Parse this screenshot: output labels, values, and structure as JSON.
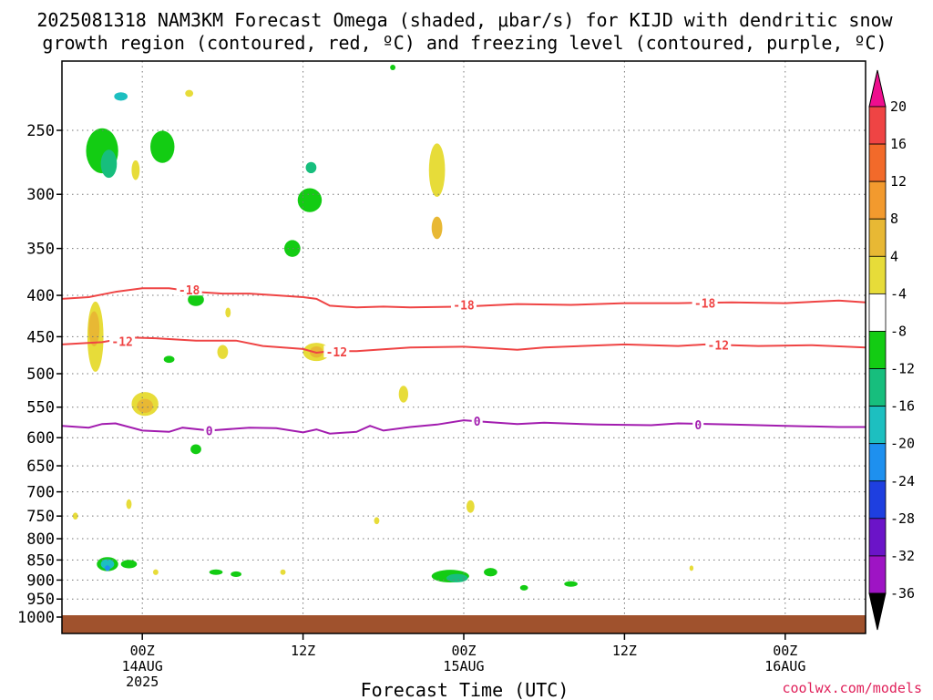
{
  "header": {
    "title_line1": "2025081318 NAM3KM Forecast Omega (shaded, μbar/s) for KIJD with dendritic snow",
    "title_line2": "growth region (contoured, red, ºC) and freezing level (contoured, purple, ºC)"
  },
  "footer": {
    "xlabel": "Forecast Time (UTC)",
    "credit": "coolwx.com/models"
  },
  "colors": {
    "dgz": "#ef4444",
    "freezing": "#a21caf",
    "ground": "#a0522d",
    "grid": "#777777"
  },
  "chart_data": {
    "type": "heatmap",
    "title": "2025081318 NAM3KM Forecast Omega (shaded, μbar/s) for KIJD with dendritic snow growth region (contoured, red, ºC) and freezing level (contoured, purple, ºC)",
    "xlabel": "Forecast Time (UTC)",
    "ylabel": "",
    "xlim": [
      -6,
      54
    ],
    "ylim": [
      1000,
      200
    ],
    "y_scale": "log",
    "grid": true,
    "y_ticks": [
      250,
      300,
      350,
      400,
      450,
      500,
      550,
      600,
      650,
      700,
      750,
      800,
      850,
      900,
      950,
      1000
    ],
    "x_ticks": [
      {
        "x": 0,
        "line1": "00Z",
        "line2": "14AUG",
        "line3": "2025"
      },
      {
        "x": 12,
        "line1": "12Z",
        "line2": "",
        "line3": ""
      },
      {
        "x": 24,
        "line1": "00Z",
        "line2": "15AUG",
        "line3": ""
      },
      {
        "x": 36,
        "line1": "12Z",
        "line2": "",
        "line3": ""
      },
      {
        "x": 48,
        "line1": "00Z",
        "line2": "16AUG",
        "line3": ""
      }
    ],
    "colorbar": {
      "labels": [
        "20",
        "16",
        "12",
        "8",
        "4",
        "-4",
        "-8",
        "-12",
        "-16",
        "-20",
        "-24",
        "-28",
        "-32",
        "-36"
      ],
      "colors": [
        "#ee0e8e",
        "#ef4444",
        "#f26a2a",
        "#f29a2e",
        "#e8b834",
        "#e7dc39",
        "#ffffff",
        "#13cc13",
        "#17be7d",
        "#1dbfc0",
        "#1e90ef",
        "#1e3fe0",
        "#6b14c8",
        "#9e14c4",
        "#a0a0a0",
        "#000000"
      ]
    },
    "contours": [
      {
        "level": -18,
        "label": "-18",
        "color": "#ef4444",
        "points": [
          [
            -6,
            404
          ],
          [
            -4,
            402
          ],
          [
            -2,
            396
          ],
          [
            0,
            392
          ],
          [
            2,
            392
          ],
          [
            4,
            396
          ],
          [
            6,
            398
          ],
          [
            8,
            398
          ],
          [
            10,
            400
          ],
          [
            12,
            402
          ],
          [
            13,
            404
          ],
          [
            14,
            412
          ],
          [
            16,
            414
          ],
          [
            18,
            413
          ],
          [
            20,
            414
          ],
          [
            24,
            413
          ],
          [
            28,
            410
          ],
          [
            32,
            411
          ],
          [
            36,
            409
          ],
          [
            40,
            409
          ],
          [
            44,
            408
          ],
          [
            48,
            409
          ],
          [
            52,
            406
          ],
          [
            54,
            408
          ]
        ],
        "label_points": [
          [
            3.5,
            394
          ],
          [
            24,
            411
          ],
          [
            42,
            409
          ]
        ]
      },
      {
        "level": -12,
        "label": "-12",
        "color": "#ef4444",
        "points": [
          [
            -6,
            460
          ],
          [
            -3,
            457
          ],
          [
            -1,
            451
          ],
          [
            1,
            452
          ],
          [
            4,
            455
          ],
          [
            7,
            455
          ],
          [
            9,
            462
          ],
          [
            12,
            466
          ],
          [
            13,
            471
          ],
          [
            14,
            469
          ],
          [
            16,
            469
          ],
          [
            20,
            464
          ],
          [
            24,
            463
          ],
          [
            26,
            465
          ],
          [
            28,
            467
          ],
          [
            30,
            464
          ],
          [
            36,
            460
          ],
          [
            40,
            462
          ],
          [
            42,
            460
          ],
          [
            46,
            462
          ],
          [
            50,
            461
          ],
          [
            54,
            464
          ]
        ],
        "label_points": [
          [
            -1.5,
            456
          ],
          [
            14.5,
            470
          ],
          [
            43,
            461
          ]
        ]
      },
      {
        "level": 0,
        "label": "0",
        "color": "#a21caf",
        "points": [
          [
            -6,
            580
          ],
          [
            -4,
            583
          ],
          [
            -3,
            577
          ],
          [
            -2,
            576
          ],
          [
            0,
            588
          ],
          [
            2,
            590
          ],
          [
            3,
            583
          ],
          [
            5,
            588
          ],
          [
            8,
            583
          ],
          [
            10,
            584
          ],
          [
            12,
            591
          ],
          [
            13,
            586
          ],
          [
            14,
            593
          ],
          [
            16,
            590
          ],
          [
            17,
            580
          ],
          [
            18,
            588
          ],
          [
            20,
            582
          ],
          [
            22,
            578
          ],
          [
            24,
            571
          ],
          [
            26,
            574
          ],
          [
            28,
            577
          ],
          [
            30,
            575
          ],
          [
            34,
            578
          ],
          [
            38,
            579
          ],
          [
            40,
            576
          ],
          [
            44,
            578
          ],
          [
            48,
            580
          ],
          [
            52,
            582
          ],
          [
            54,
            582
          ]
        ],
        "label_points": [
          [
            5,
            588
          ],
          [
            25,
            572
          ],
          [
            41.5,
            578
          ]
        ]
      }
    ],
    "omega_features": [
      {
        "cx": -3,
        "cy": 265,
        "rx": 1.2,
        "ry": 3.2,
        "color": "#13cc13"
      },
      {
        "cx": -2.5,
        "cy": 275,
        "rx": 0.6,
        "ry": 2.0,
        "color": "#17be7d"
      },
      {
        "cx": -1.6,
        "cy": 227,
        "rx": 0.5,
        "ry": 0.6,
        "color": "#1dbfc0"
      },
      {
        "cx": 1.5,
        "cy": 262,
        "rx": 0.9,
        "ry": 2.3,
        "color": "#13cc13"
      },
      {
        "cx": 12.5,
        "cy": 305,
        "rx": 0.9,
        "ry": 1.7,
        "color": "#13cc13"
      },
      {
        "cx": 12.6,
        "cy": 278,
        "rx": 0.4,
        "ry": 0.8,
        "color": "#17be7d"
      },
      {
        "cx": 11.2,
        "cy": 350,
        "rx": 0.6,
        "ry": 1.2,
        "color": "#13cc13"
      },
      {
        "cx": 4,
        "cy": 405,
        "rx": 0.6,
        "ry": 0.9,
        "color": "#13cc13"
      },
      {
        "cx": 2,
        "cy": 480,
        "rx": 0.4,
        "ry": 0.5,
        "color": "#13cc13"
      },
      {
        "cx": 4,
        "cy": 620,
        "rx": 0.4,
        "ry": 0.7,
        "color": "#13cc13"
      },
      {
        "cx": -2.6,
        "cy": 860,
        "rx": 0.8,
        "ry": 1.0,
        "color": "#13cc13"
      },
      {
        "cx": -2.6,
        "cy": 860,
        "rx": 0.5,
        "ry": 0.7,
        "color": "#1dbfc0"
      },
      {
        "cx": -2.6,
        "cy": 870,
        "rx": 0.2,
        "ry": 0.4,
        "color": "#1e90ef"
      },
      {
        "cx": -1,
        "cy": 860,
        "rx": 0.6,
        "ry": 0.6,
        "color": "#13cc13"
      },
      {
        "cx": 7,
        "cy": 885,
        "rx": 0.4,
        "ry": 0.4,
        "color": "#13cc13"
      },
      {
        "cx": 23,
        "cy": 890,
        "rx": 1.4,
        "ry": 0.9,
        "color": "#13cc13"
      },
      {
        "cx": 23.5,
        "cy": 895,
        "rx": 0.8,
        "ry": 0.6,
        "color": "#17be7d"
      },
      {
        "cx": 26,
        "cy": 880,
        "rx": 0.5,
        "ry": 0.6,
        "color": "#13cc13"
      },
      {
        "cx": 32,
        "cy": 910,
        "rx": 0.5,
        "ry": 0.4,
        "color": "#13cc13"
      },
      {
        "cx": 28.5,
        "cy": 920,
        "rx": 0.3,
        "ry": 0.3,
        "color": "#13cc13"
      },
      {
        "cx": 18.7,
        "cy": 209,
        "rx": 0.2,
        "ry": 0.2,
        "color": "#13cc13"
      },
      {
        "cx": 5.5,
        "cy": 880,
        "rx": 0.5,
        "ry": 0.1,
        "color": "#13cc13"
      },
      {
        "cx": 22,
        "cy": 280,
        "rx": 0.6,
        "ry": 3.8,
        "color": "#e7dc39"
      },
      {
        "cx": 22,
        "cy": 330,
        "rx": 0.4,
        "ry": 1.6,
        "color": "#e8b834"
      },
      {
        "cx": -3.5,
        "cy": 450,
        "rx": 0.6,
        "ry": 5.0,
        "color": "#e7dc39"
      },
      {
        "cx": -3.6,
        "cy": 440,
        "rx": 0.4,
        "ry": 2.5,
        "color": "#e8b834"
      },
      {
        "cx": 0.2,
        "cy": 545,
        "rx": 1.0,
        "ry": 1.7,
        "color": "#e7dc39"
      },
      {
        "cx": 0.2,
        "cy": 548,
        "rx": 0.6,
        "ry": 1.0,
        "color": "#e8b834"
      },
      {
        "cx": 13,
        "cy": 470,
        "rx": 1.0,
        "ry": 1.3,
        "color": "#e7dc39"
      },
      {
        "cx": 13,
        "cy": 470,
        "rx": 0.5,
        "ry": 0.8,
        "color": "#e8b834"
      },
      {
        "cx": -0.5,
        "cy": 280,
        "rx": 0.3,
        "ry": 1.4,
        "color": "#e7dc39"
      },
      {
        "cx": 3.5,
        "cy": 225,
        "rx": 0.3,
        "ry": 0.5,
        "color": "#e7dc39"
      },
      {
        "cx": 6,
        "cy": 470,
        "rx": 0.4,
        "ry": 1.0,
        "color": "#e7dc39"
      },
      {
        "cx": 6.4,
        "cy": 420,
        "rx": 0.2,
        "ry": 0.7,
        "color": "#e7dc39"
      },
      {
        "cx": 19.5,
        "cy": 530,
        "rx": 0.35,
        "ry": 1.2,
        "color": "#e7dc39"
      },
      {
        "cx": 17.5,
        "cy": 760,
        "rx": 0.2,
        "ry": 0.5,
        "color": "#e7dc39"
      },
      {
        "cx": 24.5,
        "cy": 730,
        "rx": 0.3,
        "ry": 0.9,
        "color": "#e7dc39"
      },
      {
        "cx": -5,
        "cy": 750,
        "rx": 0.2,
        "ry": 0.5,
        "color": "#e7dc39"
      },
      {
        "cx": -1,
        "cy": 725,
        "rx": 0.2,
        "ry": 0.7,
        "color": "#e7dc39"
      },
      {
        "cx": 1,
        "cy": 880,
        "rx": 0.2,
        "ry": 0.4,
        "color": "#e7dc39"
      },
      {
        "cx": 10.5,
        "cy": 880,
        "rx": 0.2,
        "ry": 0.3,
        "color": "#e7dc39"
      },
      {
        "cx": 41,
        "cy": 870,
        "rx": 0.15,
        "ry": 0.2,
        "color": "#e7dc39"
      }
    ]
  }
}
